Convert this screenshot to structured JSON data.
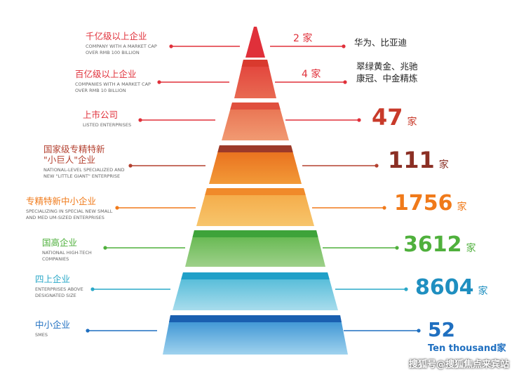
{
  "colors": {
    "red": "#e0303a",
    "red2": "#e54a3c",
    "salmon": "#e86f4f",
    "deepred": "#b3402f",
    "orange": "#f07a1a",
    "green": "#4fb03c",
    "teal": "#2aa8c8",
    "blue": "#1f6fc0"
  },
  "levels": [
    {
      "zh": "千亿级以上企业",
      "en1": "COMPANY WITH A MARKET CAP",
      "en2": "OVER RMB 100 BILLION",
      "count": "2 家",
      "companies1": "华为、比亚迪",
      "companies2": ""
    },
    {
      "zh": "百亿级以上企业",
      "en1": "COMPANIES WITH A MARKET CAP",
      "en2": "OVER RMB 10 BILLION",
      "count": "4 家",
      "companies1": "翠绿黄金、兆驰",
      "companies2": "康冠、中金精炼"
    },
    {
      "zh": "上市公司",
      "en1": "LISTED  ENTERPRISES",
      "count": "47",
      "unit": "家"
    },
    {
      "zh1": "国家级专精特新",
      "zh2": "\"小巨人\"企业",
      "en1": "NATIONAL-LEVEL SPECIALIZED AND",
      "en2": "NEW \"LITTLE GIANT\" ENTERPRISE",
      "count": "111",
      "unit": "家"
    },
    {
      "zh": "专精特新中小企业",
      "en1": "SPECIALIZING IN SPECIAL NEW SMALL",
      "en2": "AND MED UM-SIZED ENTERPRISES",
      "count": "1756",
      "unit": "家"
    },
    {
      "zh": "国高企业",
      "en1": "NATIONAL HIGH-TECH",
      "en2": "COMPANIES",
      "count": "3612",
      "unit": "家"
    },
    {
      "zh": "四上企业",
      "en1": "ENTERPRISES ABOVE",
      "en2": "DESIGNATED SIZE",
      "count": "8604",
      "unit": "家"
    },
    {
      "zh": "中小企业",
      "en1": "SMES",
      "count": "52",
      "unit": "Ten thousand家"
    }
  ],
  "watermark": "搜狐号@搜狐焦点来宾站"
}
